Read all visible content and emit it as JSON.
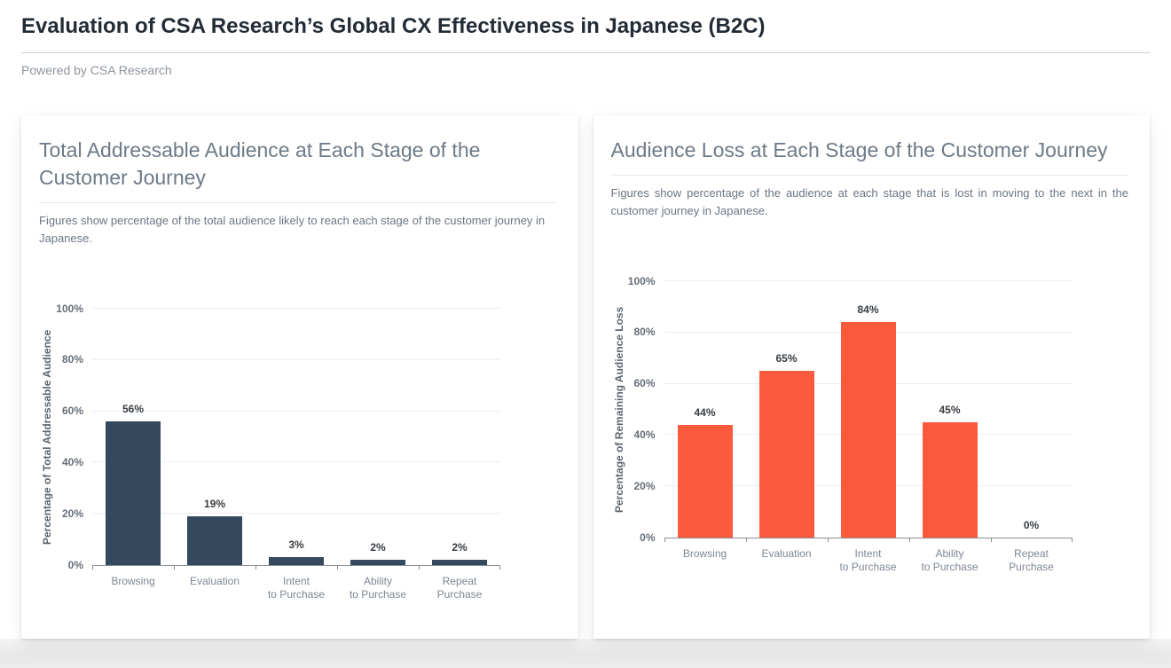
{
  "page": {
    "title": "Evaluation of CSA Research’s Global CX Effectiveness in Japanese (B2C)",
    "powered_by": "Powered by CSA Research"
  },
  "cards": [
    {
      "title": "Total Addressable Audience at Each Stage of the Customer Journey",
      "subtitle": "Figures show percentage of the total audience likely to reach each stage of the customer journey in Japanese."
    },
    {
      "title": "Audience Loss at Each Stage of the Customer Journey",
      "subtitle": "Figures show percentage of the audience at each stage that is lost in moving to the next in the customer journey in Japanese."
    }
  ],
  "chart_data": [
    {
      "type": "bar",
      "title": "Total Addressable Audience at Each Stage of the Customer Journey",
      "categories": [
        "Browsing",
        "Evaluation",
        "Intent\nto Purchase",
        "Ability\nto Purchase",
        "Repeat\nPurchase"
      ],
      "values": [
        56,
        19,
        3,
        2,
        2
      ],
      "value_labels": [
        "56%",
        "19%",
        "3%",
        "2%",
        "2%"
      ],
      "xlabel": "",
      "ylabel": "Percentage of Total Addressable Audience",
      "ylim": [
        0,
        100
      ],
      "yticks": [
        "0%",
        "20%",
        "40%",
        "60%",
        "80%",
        "100%"
      ],
      "bar_color": "#34495e",
      "grid": true,
      "legend": "none"
    },
    {
      "type": "bar",
      "title": "Audience Loss at Each Stage of the Customer Journey",
      "categories": [
        "Browsing",
        "Evaluation",
        "Intent\nto Purchase",
        "Ability\nto Purchase",
        "Repeat\nPurchase"
      ],
      "values": [
        44,
        65,
        84,
        45,
        0
      ],
      "value_labels": [
        "44%",
        "65%",
        "84%",
        "45%",
        "0%"
      ],
      "xlabel": "",
      "ylabel": "Percentage of Remaining Audience Loss",
      "ylim": [
        0,
        100
      ],
      "yticks": [
        "0%",
        "20%",
        "40%",
        "60%",
        "80%",
        "100%"
      ],
      "bar_color": "#fb5a3c",
      "grid": true,
      "legend": "none"
    }
  ]
}
